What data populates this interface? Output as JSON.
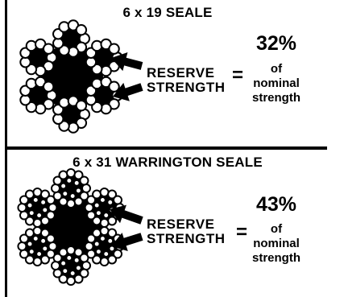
{
  "panels": [
    {
      "title": "6 x 19 SEALE",
      "label_line1": "RESERVE",
      "label_line2": "STRENGTH",
      "equals": "=",
      "percent": "32%",
      "desc_line1": "of",
      "desc_line2": "nominal",
      "desc_line3": "strength"
    },
    {
      "title": "6 x 31 WARRINGTON SEALE",
      "label_line1": "RESERVE",
      "label_line2": "STRENGTH",
      "equals": "=",
      "percent": "43%",
      "desc_line1": "of",
      "desc_line2": "nominal",
      "desc_line3": "strength"
    }
  ],
  "colors": {
    "ink": "#000000",
    "paper": "#ffffff"
  }
}
